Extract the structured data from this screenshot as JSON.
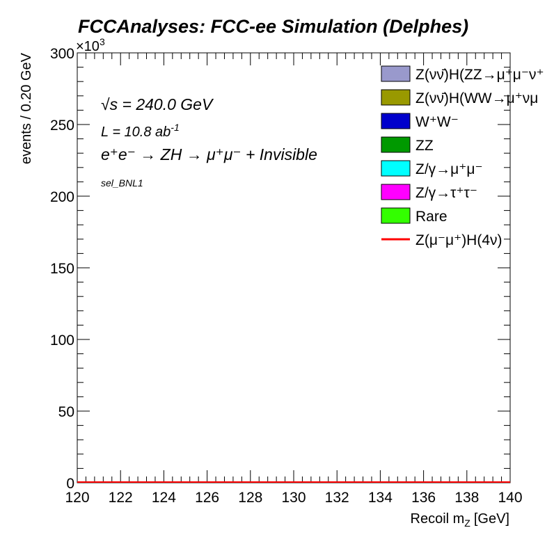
{
  "chart_data": {
    "type": "line",
    "title": "FCCAnalyses: FCC-ee Simulation (Delphes)",
    "xlabel": "Recoil m",
    "xlabel_sub": "Z",
    "xlabel_unit": "[GeV]",
    "ylabel": "events / 0.20 GeV",
    "y_multiplier": "×10",
    "y_multiplier_exp": "3",
    "xlim": [
      120,
      140
    ],
    "ylim": [
      0,
      300
    ],
    "x_ticks": [
      "120",
      "122",
      "124",
      "126",
      "128",
      "130",
      "132",
      "134",
      "136",
      "138",
      "140"
    ],
    "y_ticks": [
      "0",
      "50",
      "100",
      "150",
      "200",
      "250",
      "300"
    ],
    "annotations": {
      "sqrt_s": "√s = 240.0 GeV",
      "lumi": "L = 10.8 ab",
      "lumi_exp": "-1",
      "process": "e⁺e⁻ → ZH → μ⁺μ⁻ + Invisible",
      "selection": "sel_BNL1"
    },
    "legend": {
      "placement": "top-right",
      "entries": [
        {
          "label": "Z(νν̄)H(ZZ→μ⁺μ⁻ν⁺",
          "color": "#9999cc",
          "style": "box"
        },
        {
          "label": "Z(νν̄)H(WW→μ⁺νμ",
          "color": "#999900",
          "style": "box"
        },
        {
          "label": "W⁺W⁻",
          "color": "#0000cc",
          "style": "box"
        },
        {
          "label": "ZZ",
          "color": "#009900",
          "style": "box"
        },
        {
          "label": "Z/γ→μ⁺μ⁻",
          "color": "#00ffff",
          "style": "box"
        },
        {
          "label": "Z/γ→τ⁺τ⁻",
          "color": "#ff00ff",
          "style": "box"
        },
        {
          "label": "Rare",
          "color": "#33ff00",
          "style": "box"
        },
        {
          "label": "Z(μ⁻μ⁺)H(4ν)",
          "color": "#ff0000",
          "style": "line"
        }
      ]
    },
    "series": [
      {
        "name": "Z(μ⁻μ⁺)H(4ν)",
        "color": "#ff0000",
        "x": [
          120,
          140
        ],
        "y": [
          0,
          0
        ]
      }
    ],
    "grid": false
  }
}
